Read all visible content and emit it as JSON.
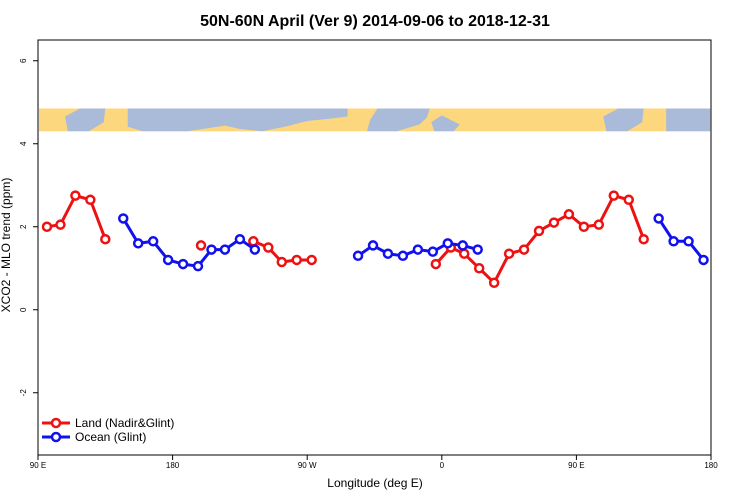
{
  "chart_data": {
    "type": "line",
    "title": "50N-60N April (Ver 9)   2014-09-06 to 2018-12-31",
    "xlabel": "Longitude (deg E)",
    "ylabel": "XCO2 - MLO trend (ppm)",
    "xlim": [
      90,
      540
    ],
    "ylim": [
      -3.5,
      6.5
    ],
    "x_ticks": [
      {
        "value": 90,
        "label": "90 E"
      },
      {
        "value": 180,
        "label": "180"
      },
      {
        "value": 270,
        "label": "90 W"
      },
      {
        "value": 360,
        "label": "0"
      },
      {
        "value": 450,
        "label": "90 E"
      },
      {
        "value": 540,
        "label": "180"
      }
    ],
    "y_ticks": [
      {
        "value": -2,
        "label": "-2"
      },
      {
        "value": 0,
        "label": "0"
      },
      {
        "value": 2,
        "label": "2"
      },
      {
        "value": 4,
        "label": "4"
      },
      {
        "value": 6,
        "label": "6"
      }
    ],
    "map_strip": {
      "y_top": 4.85,
      "y_bottom": 4.3,
      "ocean_color": "#a9bbd9",
      "land_color": "#fdd77d"
    },
    "legend_position": "bottom-left",
    "series": [
      {
        "name": "Land (Nadir&Glint)",
        "color": "#ee1111",
        "segments": [
          [
            [
              96,
              2.0
            ],
            [
              105,
              2.05
            ],
            [
              115,
              2.75
            ],
            [
              125,
              2.65
            ],
            [
              135,
              1.7
            ]
          ],
          [
            [
              199,
              1.55
            ]
          ],
          [
            [
              234,
              1.65
            ],
            [
              244,
              1.5
            ],
            [
              253,
              1.15
            ],
            [
              263,
              1.2
            ],
            [
              273,
              1.2
            ]
          ],
          [
            [
              356,
              1.1
            ],
            [
              366,
              1.5
            ],
            [
              375,
              1.35
            ],
            [
              385,
              1.0
            ],
            [
              395,
              0.65
            ],
            [
              405,
              1.35
            ],
            [
              415,
              1.45
            ],
            [
              425,
              1.9
            ],
            [
              435,
              2.1
            ],
            [
              445,
              2.3
            ],
            [
              455,
              2.0
            ],
            [
              465,
              2.05
            ],
            [
              475,
              2.75
            ],
            [
              485,
              2.65
            ],
            [
              495,
              1.7
            ]
          ]
        ]
      },
      {
        "name": "Ocean (Glint)",
        "color": "#1111ee",
        "segments": [
          [
            [
              147,
              2.2
            ],
            [
              157,
              1.6
            ],
            [
              167,
              1.65
            ],
            [
              177,
              1.2
            ],
            [
              187,
              1.1
            ],
            [
              197,
              1.05
            ],
            [
              206,
              1.45
            ],
            [
              215,
              1.45
            ],
            [
              225,
              1.7
            ],
            [
              235,
              1.45
            ]
          ],
          [
            [
              304,
              1.3
            ],
            [
              314,
              1.55
            ],
            [
              324,
              1.35
            ],
            [
              334,
              1.3
            ],
            [
              344,
              1.45
            ],
            [
              354,
              1.4
            ],
            [
              364,
              1.6
            ],
            [
              374,
              1.55
            ],
            [
              384,
              1.45
            ]
          ],
          [
            [
              505,
              2.2
            ],
            [
              515,
              1.65
            ],
            [
              525,
              1.65
            ],
            [
              535,
              1.2
            ]
          ]
        ]
      }
    ]
  }
}
